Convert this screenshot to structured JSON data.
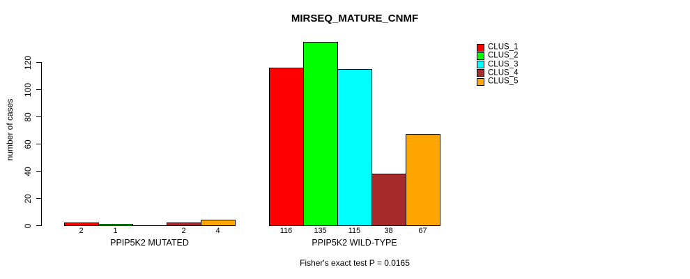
{
  "title": "MIRSEQ_MATURE_CNMF",
  "footnote": "Fisher's exact test P = 0.0165",
  "chart_data": {
    "type": "bar",
    "title": "MIRSEQ_MATURE_CNMF",
    "xlabel": "",
    "ylabel": "number of cases",
    "ylim": [
      0,
      135
    ],
    "yticks": [
      0,
      20,
      40,
      60,
      80,
      100,
      120
    ],
    "grid": false,
    "legend_position": "top-right",
    "categories": [
      "PPIP5K2 MUTATED",
      "PPIP5K2 WILD-TYPE"
    ],
    "series": [
      {
        "name": "CLUS_1",
        "color": "#FF0000",
        "values": [
          2,
          116
        ]
      },
      {
        "name": "CLUS_2",
        "color": "#00FF00",
        "values": [
          1,
          135
        ]
      },
      {
        "name": "CLUS_3",
        "color": "#00FFFF",
        "values": [
          0,
          115
        ]
      },
      {
        "name": "CLUS_4",
        "color": "#A52A2A",
        "values": [
          2,
          38
        ]
      },
      {
        "name": "CLUS_5",
        "color": "#FFA500",
        "values": [
          4,
          67
        ]
      }
    ],
    "bar_value_labels": [
      [
        "2",
        "1",
        "",
        "2",
        "4"
      ],
      [
        "116",
        "135",
        "115",
        "38",
        "67"
      ]
    ],
    "annotation": "Fisher's exact test P = 0.0165"
  }
}
